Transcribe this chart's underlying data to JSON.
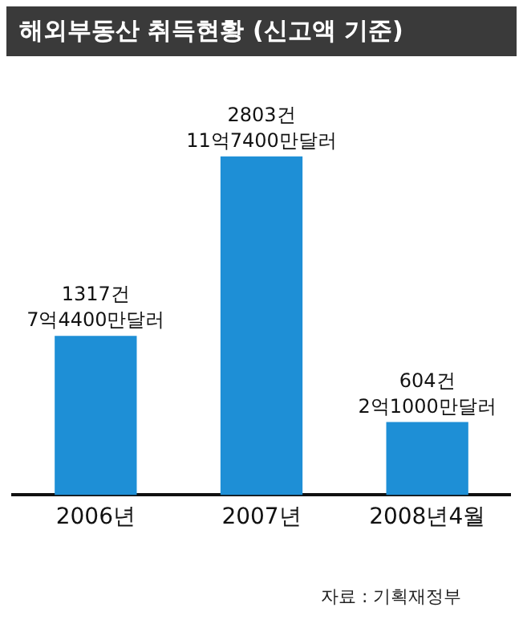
{
  "chart_data": {
    "type": "bar",
    "title": "해외부동산 취득현황 (신고액 기준)",
    "categories": [
      "2006년",
      "2007년",
      "2008년4월"
    ],
    "values": [
      1317,
      2803,
      604
    ],
    "color": "#1e8fd6",
    "value_labels": [
      "1317건\n7억4400만달러",
      "2803건\n11억7400만달러",
      "604건\n2억1000만달러"
    ],
    "grid": false,
    "legend": false,
    "annotations": [
      "자료 : 기획재정부"
    ]
  }
}
